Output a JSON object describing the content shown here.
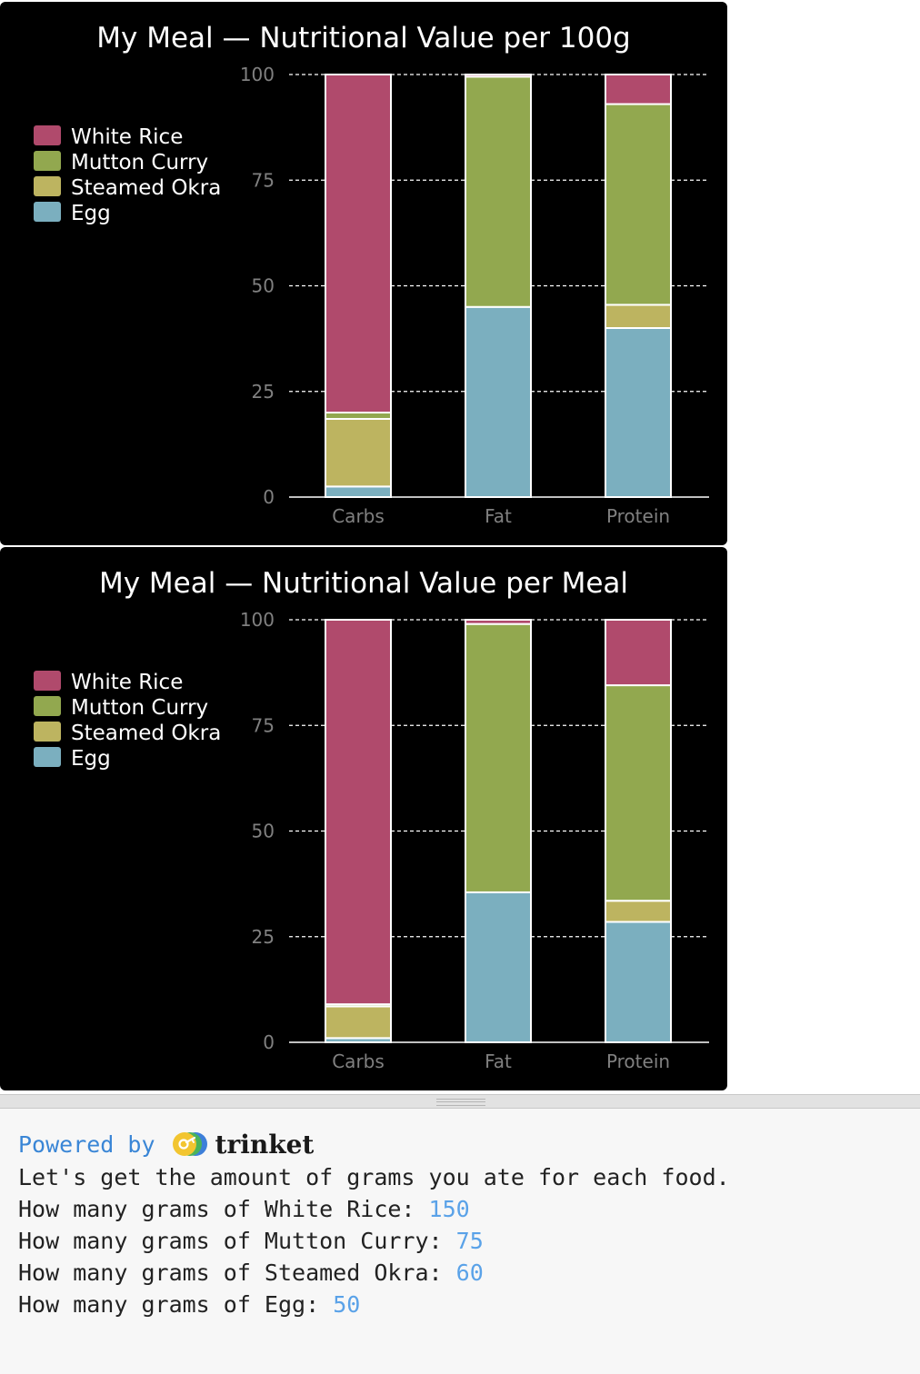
{
  "chart_data": [
    {
      "type": "bar",
      "stacked": true,
      "title": "My Meal — Nutritional Value per 100g",
      "categories": [
        "Carbs",
        "Fat",
        "Protein"
      ],
      "ylim": [
        0,
        100
      ],
      "yticks": [
        0,
        25,
        50,
        75,
        100
      ],
      "grid": true,
      "legend_position": "top-left",
      "series": [
        {
          "name": "Egg",
          "color": "#7bafbf",
          "values": [
            2.5,
            45,
            40
          ]
        },
        {
          "name": "Steamed Okra",
          "color": "#bdb460",
          "values": [
            16,
            0,
            5.5
          ]
        },
        {
          "name": "Mutton Curry",
          "color": "#92a84f",
          "values": [
            1.5,
            54.5,
            47.5
          ]
        },
        {
          "name": "White Rice",
          "color": "#b04a6c",
          "values": [
            80,
            0.5,
            7
          ]
        }
      ],
      "legend_order": [
        "White Rice",
        "Mutton Curry",
        "Steamed Okra",
        "Egg"
      ]
    },
    {
      "type": "bar",
      "stacked": true,
      "title": "My Meal — Nutritional Value per Meal",
      "categories": [
        "Carbs",
        "Fat",
        "Protein"
      ],
      "ylim": [
        0,
        100
      ],
      "yticks": [
        0,
        25,
        50,
        75,
        100
      ],
      "grid": true,
      "legend_position": "top-left",
      "series": [
        {
          "name": "Egg",
          "color": "#7bafbf",
          "values": [
            1,
            35.5,
            28.5
          ]
        },
        {
          "name": "Steamed Okra",
          "color": "#bdb460",
          "values": [
            7.5,
            0,
            5
          ]
        },
        {
          "name": "Mutton Curry",
          "color": "#92a84f",
          "values": [
            0.5,
            63.5,
            51
          ]
        },
        {
          "name": "White Rice",
          "color": "#b04a6c",
          "values": [
            91,
            1,
            15.5
          ]
        }
      ],
      "legend_order": [
        "White Rice",
        "Mutton Curry",
        "Steamed Okra",
        "Egg"
      ]
    }
  ],
  "console": {
    "powered_by": "Powered by",
    "brand": "trinket",
    "intro": "Let's get the amount of grams you ate for each food.",
    "prompts": [
      {
        "text": "How many grams of White Rice: ",
        "answer": "150"
      },
      {
        "text": "How many grams of Mutton Curry: ",
        "answer": "75"
      },
      {
        "text": "How many grams of Steamed Okra: ",
        "answer": "60"
      },
      {
        "text": "How many grams of Egg: ",
        "answer": "50"
      }
    ]
  }
}
